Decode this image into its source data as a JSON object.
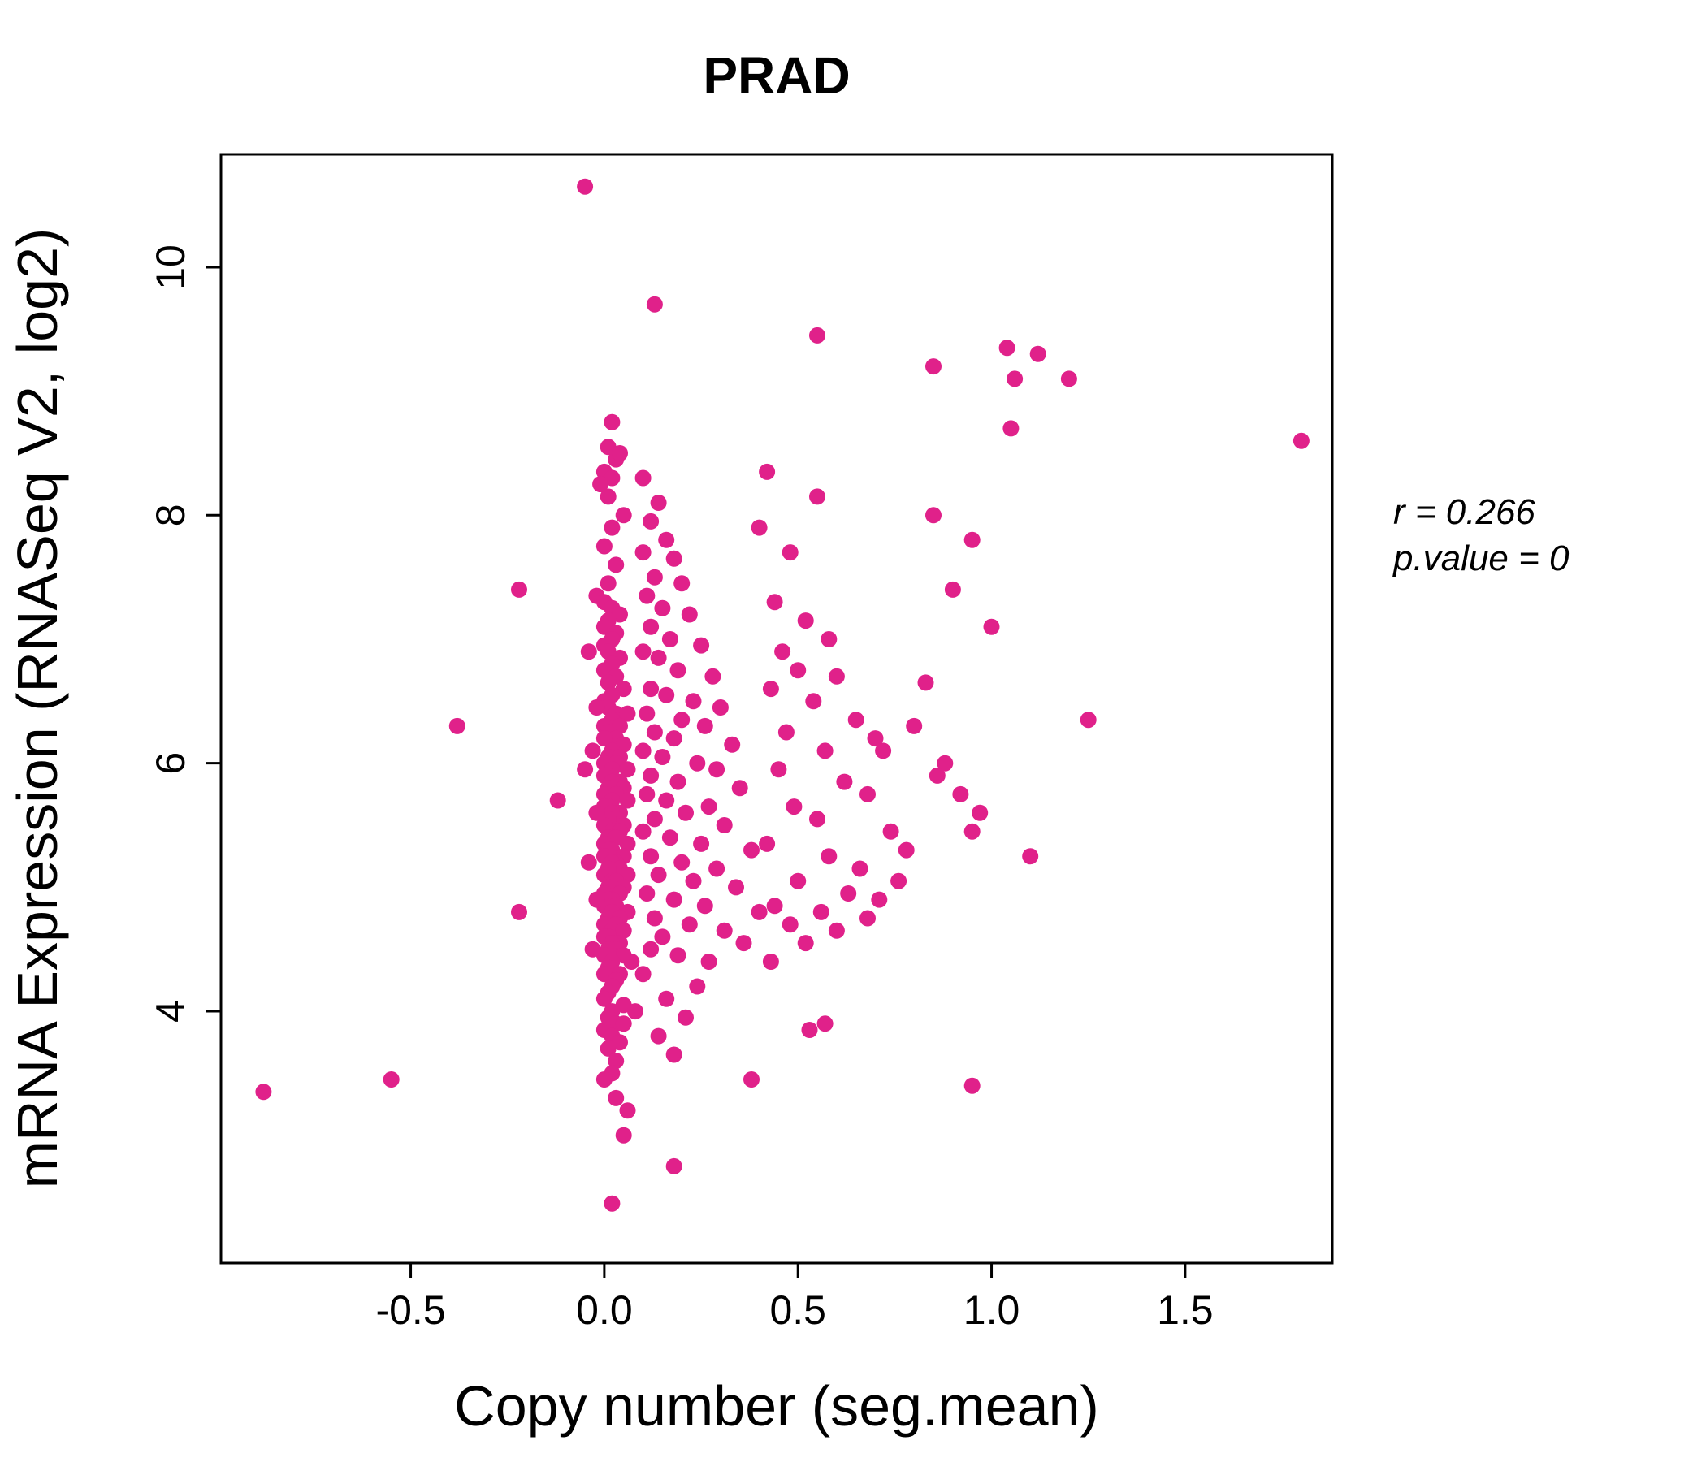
{
  "annotation": {
    "line1": "r = 0.266",
    "line2": "p.value = 0"
  },
  "chart_data": {
    "type": "scatter",
    "title": "PRAD",
    "title_color": "#E0218A",
    "point_color": "#E0218A",
    "xlabel": "Copy number (seg.mean)",
    "ylabel": "mRNA Expression (RNASeq V2, log2)",
    "xlim": [
      -0.99,
      1.88
    ],
    "ylim": [
      1.97,
      10.91
    ],
    "xticks": [
      -0.5,
      0.0,
      0.5,
      1.0,
      1.5
    ],
    "xtick_labels": [
      "-0.5",
      "0.0",
      "0.5",
      "1.0",
      "1.5"
    ],
    "yticks": [
      4,
      6,
      8,
      10
    ],
    "ytick_labels": [
      "4",
      "6",
      "8",
      "10"
    ],
    "legend": "none",
    "grid": false,
    "annotation_r": "r = 0.266",
    "annotation_p": "p.value = 0",
    "points": [
      [
        -0.05,
        10.65
      ],
      [
        0.13,
        9.7
      ],
      [
        0.55,
        9.45
      ],
      [
        0.85,
        9.2
      ],
      [
        1.04,
        9.35
      ],
      [
        1.12,
        9.3
      ],
      [
        1.06,
        9.1
      ],
      [
        1.2,
        9.1
      ],
      [
        1.05,
        8.7
      ],
      [
        1.8,
        8.6
      ],
      [
        0.0,
        8.35
      ],
      [
        0.02,
        8.3
      ],
      [
        -0.01,
        8.25
      ],
      [
        0.01,
        8.15
      ],
      [
        0.03,
        8.45
      ],
      [
        0.02,
        8.75
      ],
      [
        0.01,
        8.55
      ],
      [
        0.04,
        8.5
      ],
      [
        0.05,
        8.0
      ],
      [
        0.02,
        7.9
      ],
      [
        0.0,
        7.75
      ],
      [
        0.03,
        7.6
      ],
      [
        0.01,
        7.45
      ],
      [
        -0.02,
        7.35
      ],
      [
        0.0,
        7.3
      ],
      [
        0.02,
        7.25
      ],
      [
        0.04,
        7.2
      ],
      [
        0.01,
        7.15
      ],
      [
        0.0,
        7.1
      ],
      [
        0.03,
        7.05
      ],
      [
        0.02,
        7.0
      ],
      [
        0.0,
        6.95
      ],
      [
        0.01,
        6.9
      ],
      [
        0.04,
        6.85
      ],
      [
        0.02,
        6.8
      ],
      [
        0.0,
        6.75
      ],
      [
        0.03,
        6.7
      ],
      [
        0.01,
        6.65
      ],
      [
        0.05,
        6.6
      ],
      [
        0.02,
        6.55
      ],
      [
        0.0,
        6.5
      ],
      [
        0.01,
        6.45
      ],
      [
        0.03,
        6.4
      ],
      [
        0.06,
        6.4
      ],
      [
        0.02,
        6.35
      ],
      [
        0.0,
        6.3
      ],
      [
        0.04,
        6.3
      ],
      [
        0.01,
        6.25
      ],
      [
        0.03,
        6.2
      ],
      [
        0.0,
        6.2
      ],
      [
        0.05,
        6.15
      ],
      [
        0.02,
        6.1
      ],
      [
        0.01,
        6.05
      ],
      [
        0.04,
        6.05
      ],
      [
        0.0,
        6.0
      ],
      [
        0.03,
        6.0
      ],
      [
        0.06,
        5.95
      ],
      [
        0.02,
        5.95
      ],
      [
        0.01,
        5.9
      ],
      [
        0.0,
        5.9
      ],
      [
        0.04,
        5.85
      ],
      [
        0.02,
        5.85
      ],
      [
        0.05,
        5.8
      ],
      [
        0.01,
        5.8
      ],
      [
        0.0,
        5.75
      ],
      [
        0.03,
        5.75
      ],
      [
        0.02,
        5.7
      ],
      [
        0.06,
        5.7
      ],
      [
        0.01,
        5.65
      ],
      [
        0.0,
        5.65
      ],
      [
        0.04,
        5.6
      ],
      [
        0.02,
        5.6
      ],
      [
        0.03,
        5.55
      ],
      [
        0.01,
        5.55
      ],
      [
        0.05,
        5.5
      ],
      [
        0.0,
        5.5
      ],
      [
        0.02,
        5.45
      ],
      [
        0.04,
        5.45
      ],
      [
        0.01,
        5.4
      ],
      [
        0.03,
        5.4
      ],
      [
        0.0,
        5.35
      ],
      [
        0.06,
        5.35
      ],
      [
        0.02,
        5.3
      ],
      [
        0.01,
        5.3
      ],
      [
        0.05,
        5.25
      ],
      [
        0.0,
        5.25
      ],
      [
        0.03,
        5.2
      ],
      [
        0.02,
        5.2
      ],
      [
        0.04,
        5.15
      ],
      [
        0.01,
        5.15
      ],
      [
        0.0,
        5.1
      ],
      [
        0.06,
        5.1
      ],
      [
        0.02,
        5.05
      ],
      [
        0.03,
        5.05
      ],
      [
        0.01,
        5.0
      ],
      [
        0.05,
        5.0
      ],
      [
        0.0,
        4.95
      ],
      [
        0.04,
        4.95
      ],
      [
        0.02,
        4.9
      ],
      [
        0.01,
        4.9
      ],
      [
        0.03,
        4.85
      ],
      [
        0.0,
        4.85
      ],
      [
        0.06,
        4.8
      ],
      [
        0.02,
        4.8
      ],
      [
        0.01,
        4.75
      ],
      [
        0.04,
        4.75
      ],
      [
        0.0,
        4.7
      ],
      [
        0.03,
        4.7
      ],
      [
        0.02,
        4.65
      ],
      [
        0.05,
        4.65
      ],
      [
        0.01,
        4.6
      ],
      [
        0.0,
        4.6
      ],
      [
        0.04,
        4.55
      ],
      [
        0.02,
        4.55
      ],
      [
        0.03,
        4.5
      ],
      [
        0.01,
        4.5
      ],
      [
        0.0,
        4.45
      ],
      [
        0.05,
        4.45
      ],
      [
        0.02,
        4.4
      ],
      [
        0.01,
        4.35
      ],
      [
        0.04,
        4.3
      ],
      [
        0.0,
        4.3
      ],
      [
        0.03,
        4.25
      ],
      [
        0.02,
        4.2
      ],
      [
        0.01,
        4.15
      ],
      [
        0.0,
        4.1
      ],
      [
        0.05,
        4.05
      ],
      [
        0.02,
        4.0
      ],
      [
        0.01,
        3.95
      ],
      [
        0.03,
        3.9
      ],
      [
        0.0,
        3.85
      ],
      [
        0.02,
        3.8
      ],
      [
        0.04,
        3.75
      ],
      [
        0.01,
        3.7
      ],
      [
        0.03,
        3.6
      ],
      [
        0.02,
        3.5
      ],
      [
        0.0,
        3.45
      ],
      [
        -0.03,
        6.1
      ],
      [
        -0.02,
        5.6
      ],
      [
        -0.04,
        5.2
      ],
      [
        -0.02,
        4.9
      ],
      [
        -0.03,
        4.5
      ],
      [
        -0.05,
        5.95
      ],
      [
        -0.02,
        6.45
      ],
      [
        -0.04,
        6.9
      ],
      [
        0.1,
        8.3
      ],
      [
        0.14,
        8.1
      ],
      [
        0.12,
        7.95
      ],
      [
        0.16,
        7.8
      ],
      [
        0.1,
        7.7
      ],
      [
        0.18,
        7.65
      ],
      [
        0.13,
        7.5
      ],
      [
        0.2,
        7.45
      ],
      [
        0.11,
        7.35
      ],
      [
        0.15,
        7.25
      ],
      [
        0.22,
        7.2
      ],
      [
        0.12,
        7.1
      ],
      [
        0.17,
        7.0
      ],
      [
        0.25,
        6.95
      ],
      [
        0.1,
        6.9
      ],
      [
        0.14,
        6.85
      ],
      [
        0.19,
        6.75
      ],
      [
        0.28,
        6.7
      ],
      [
        0.12,
        6.6
      ],
      [
        0.16,
        6.55
      ],
      [
        0.23,
        6.5
      ],
      [
        0.3,
        6.45
      ],
      [
        0.11,
        6.4
      ],
      [
        0.2,
        6.35
      ],
      [
        0.26,
        6.3
      ],
      [
        0.13,
        6.25
      ],
      [
        0.18,
        6.2
      ],
      [
        0.33,
        6.15
      ],
      [
        0.1,
        6.1
      ],
      [
        0.15,
        6.05
      ],
      [
        0.24,
        6.0
      ],
      [
        0.29,
        5.95
      ],
      [
        0.12,
        5.9
      ],
      [
        0.19,
        5.85
      ],
      [
        0.35,
        5.8
      ],
      [
        0.11,
        5.75
      ],
      [
        0.16,
        5.7
      ],
      [
        0.27,
        5.65
      ],
      [
        0.21,
        5.6
      ],
      [
        0.13,
        5.55
      ],
      [
        0.31,
        5.5
      ],
      [
        0.1,
        5.45
      ],
      [
        0.17,
        5.4
      ],
      [
        0.25,
        5.35
      ],
      [
        0.38,
        5.3
      ],
      [
        0.12,
        5.25
      ],
      [
        0.2,
        5.2
      ],
      [
        0.29,
        5.15
      ],
      [
        0.14,
        5.1
      ],
      [
        0.23,
        5.05
      ],
      [
        0.34,
        5.0
      ],
      [
        0.11,
        4.95
      ],
      [
        0.18,
        4.9
      ],
      [
        0.26,
        4.85
      ],
      [
        0.4,
        4.8
      ],
      [
        0.13,
        4.75
      ],
      [
        0.22,
        4.7
      ],
      [
        0.31,
        4.65
      ],
      [
        0.15,
        4.6
      ],
      [
        0.36,
        4.55
      ],
      [
        0.12,
        4.5
      ],
      [
        0.19,
        4.45
      ],
      [
        0.27,
        4.4
      ],
      [
        0.1,
        4.3
      ],
      [
        0.24,
        4.2
      ],
      [
        0.16,
        4.1
      ],
      [
        0.21,
        3.95
      ],
      [
        0.14,
        3.8
      ],
      [
        0.18,
        3.65
      ],
      [
        0.42,
        8.35
      ],
      [
        0.4,
        7.9
      ],
      [
        0.48,
        7.7
      ],
      [
        0.55,
        8.15
      ],
      [
        0.44,
        7.3
      ],
      [
        0.52,
        7.15
      ],
      [
        0.58,
        7.0
      ],
      [
        0.46,
        6.9
      ],
      [
        0.5,
        6.75
      ],
      [
        0.6,
        6.7
      ],
      [
        0.43,
        6.6
      ],
      [
        0.54,
        6.5
      ],
      [
        0.65,
        6.35
      ],
      [
        0.47,
        6.25
      ],
      [
        0.57,
        6.1
      ],
      [
        0.7,
        6.2
      ],
      [
        0.72,
        6.1
      ],
      [
        0.45,
        5.95
      ],
      [
        0.62,
        5.85
      ],
      [
        0.68,
        5.75
      ],
      [
        0.49,
        5.65
      ],
      [
        0.55,
        5.55
      ],
      [
        0.74,
        5.45
      ],
      [
        0.42,
        5.35
      ],
      [
        0.58,
        5.25
      ],
      [
        0.66,
        5.15
      ],
      [
        0.5,
        5.05
      ],
      [
        0.63,
        4.95
      ],
      [
        0.71,
        4.9
      ],
      [
        0.44,
        4.85
      ],
      [
        0.56,
        4.8
      ],
      [
        0.68,
        4.75
      ],
      [
        0.48,
        4.7
      ],
      [
        0.6,
        4.65
      ],
      [
        0.52,
        4.55
      ],
      [
        0.43,
        4.4
      ],
      [
        0.57,
        3.9
      ],
      [
        0.53,
        3.85
      ],
      [
        0.85,
        8.0
      ],
      [
        0.95,
        7.8
      ],
      [
        0.9,
        7.4
      ],
      [
        1.0,
        7.1
      ],
      [
        0.83,
        6.65
      ],
      [
        0.8,
        6.3
      ],
      [
        1.25,
        6.35
      ],
      [
        0.88,
        6.0
      ],
      [
        0.86,
        5.9
      ],
      [
        0.92,
        5.75
      ],
      [
        0.97,
        5.6
      ],
      [
        1.1,
        5.25
      ],
      [
        0.95,
        5.45
      ],
      [
        0.78,
        5.3
      ],
      [
        0.76,
        5.05
      ],
      [
        0.95,
        3.4
      ],
      [
        -0.22,
        7.4
      ],
      [
        -0.38,
        6.3
      ],
      [
        -0.12,
        5.7
      ],
      [
        -0.22,
        4.8
      ],
      [
        -0.88,
        3.35
      ],
      [
        -0.55,
        3.45
      ],
      [
        0.02,
        2.45
      ],
      [
        0.18,
        2.75
      ],
      [
        0.05,
        3.0
      ],
      [
        0.38,
        3.45
      ],
      [
        0.06,
        3.2
      ],
      [
        0.03,
        3.3
      ],
      [
        0.05,
        3.9
      ],
      [
        0.07,
        4.4
      ],
      [
        0.08,
        4.0
      ]
    ]
  }
}
